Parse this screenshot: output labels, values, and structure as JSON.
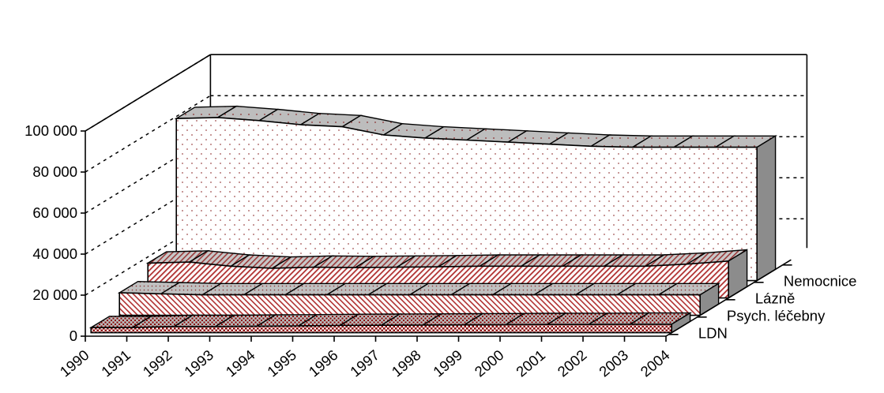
{
  "chart_data": {
    "type": "area",
    "title": "",
    "xlabel": "",
    "ylabel": "",
    "ylim": [
      0,
      100000
    ],
    "y_ticks": [
      "0",
      "20 000",
      "40 000",
      "60 000",
      "80 000",
      "100 000"
    ],
    "y_tick_values": [
      0,
      20000,
      40000,
      60000,
      80000,
      100000
    ],
    "categories": [
      "1990",
      "1991",
      "1992",
      "1993",
      "1994",
      "1995",
      "1996",
      "1997",
      "1998",
      "1999",
      "2000",
      "2001",
      "2002",
      "2003",
      "2004"
    ],
    "grid": true,
    "series": [
      {
        "name": "LDN",
        "color": "#8b0000",
        "values": [
          2500,
          2500,
          3000,
          3000,
          3200,
          3300,
          3500,
          3600,
          3700,
          3800,
          3900,
          4000,
          4000,
          4100,
          4100
        ]
      },
      {
        "name": "Psych. léčebny",
        "color": "#8b0000",
        "values": [
          11000,
          10500,
          10000,
          10000,
          10000,
          10000,
          10000,
          10000,
          10000,
          10000,
          10000,
          10000,
          10000,
          10000,
          10000
        ]
      },
      {
        "name": "Lázně",
        "color": "#8b0000",
        "values": [
          17000,
          17500,
          15500,
          14500,
          15000,
          14800,
          15000,
          15200,
          15500,
          15500,
          15500,
          15500,
          15500,
          16500,
          18000
        ]
      },
      {
        "name": "Nemocnice",
        "color": "#8b0000",
        "values": [
          79000,
          79500,
          78000,
          76000,
          75000,
          71000,
          69500,
          68500,
          67500,
          66500,
          65500,
          65000,
          65000,
          65000,
          65000
        ]
      }
    ]
  }
}
